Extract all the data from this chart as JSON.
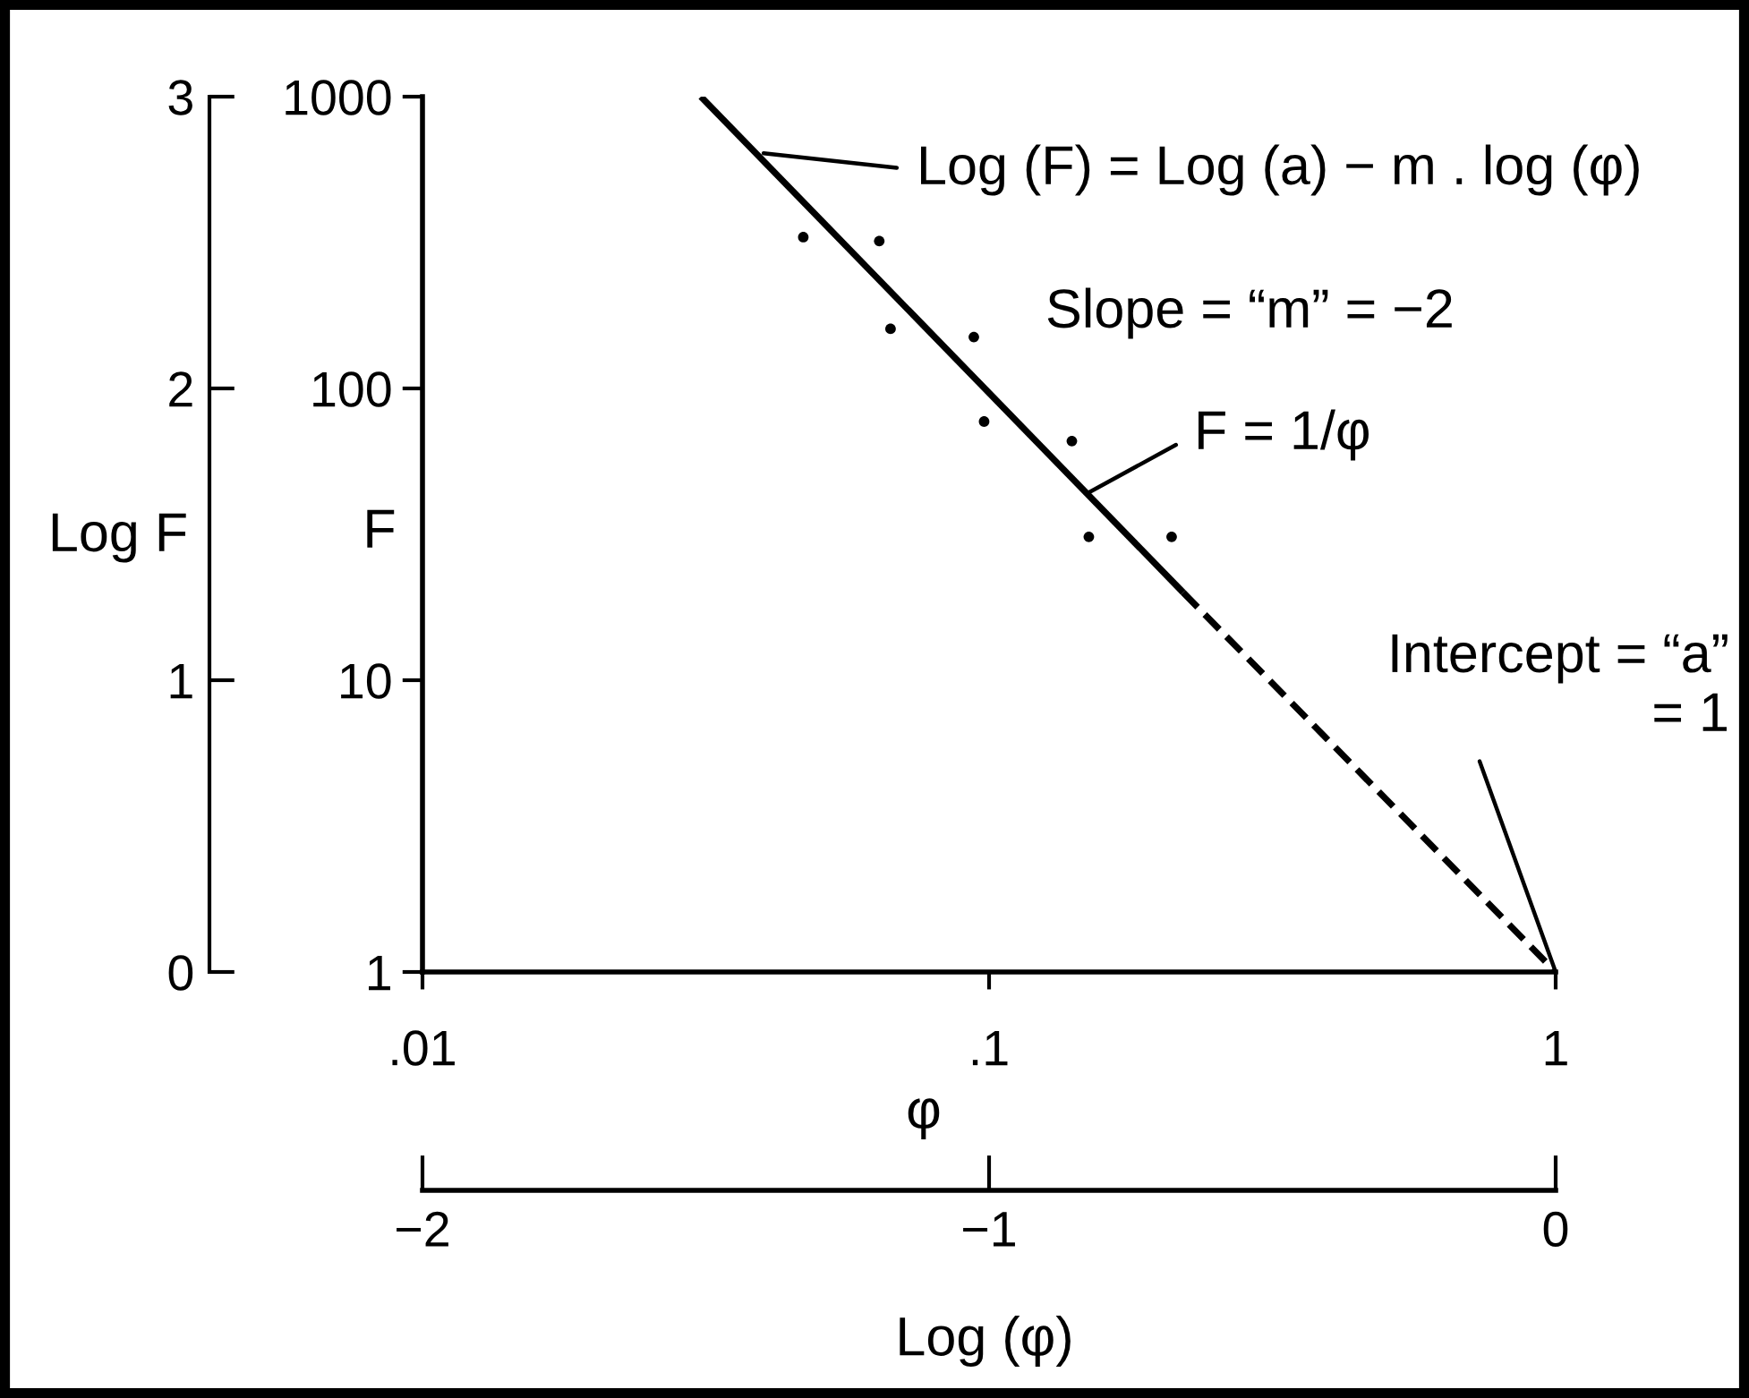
{
  "chart_data": {
    "type": "scatter",
    "xlabel": "φ",
    "ylabel": "F",
    "y2label": "Log F",
    "x2label": "Log (φ)",
    "log": "xy",
    "xlim": [
      0.01,
      1
    ],
    "ylim": [
      1,
      1000
    ],
    "xticks": [
      {
        "value": 0.01,
        "label": ".01"
      },
      {
        "value": 0.1,
        "label": ".1"
      },
      1
    ],
    "yticks": [
      1,
      10,
      100,
      1000
    ],
    "x2lim": [
      -2,
      0
    ],
    "x2ticks": [
      {
        "value": -2,
        "label": "−2"
      },
      {
        "value": -1,
        "label": "−1"
      },
      0
    ],
    "y2lim": [
      0,
      3
    ],
    "y2ticks": [
      0,
      1,
      2,
      3
    ],
    "series": [
      {
        "color": "#000000",
        "marker": "circle",
        "x": [
          0.047,
          0.064,
          0.067,
          0.094,
          0.098,
          0.14,
          0.15,
          0.21
        ],
        "values": [
          330,
          320,
          160,
          150,
          77,
          66,
          31,
          31
        ]
      },
      {
        "type": "line",
        "color": "#000000",
        "line_style": "solid",
        "x": [
          0.031,
          0.22
        ],
        "values": [
          1000,
          20
        ]
      },
      {
        "type": "line",
        "color": "#000000",
        "line_style": "dashed",
        "x": [
          0.22,
          1
        ],
        "values": [
          20,
          1
        ]
      }
    ],
    "annotations": [
      {
        "text": "Log (F) = Log (a) − m . log (φ)",
        "x": 0.04,
        "y": 640
      },
      "Slope = “m” = −2",
      {
        "text": "F = 1/φ",
        "x": 0.15,
        "y": 44
      },
      {
        "text": "Intercept = “a”\n= 1",
        "x": 1,
        "y": 1
      }
    ]
  }
}
